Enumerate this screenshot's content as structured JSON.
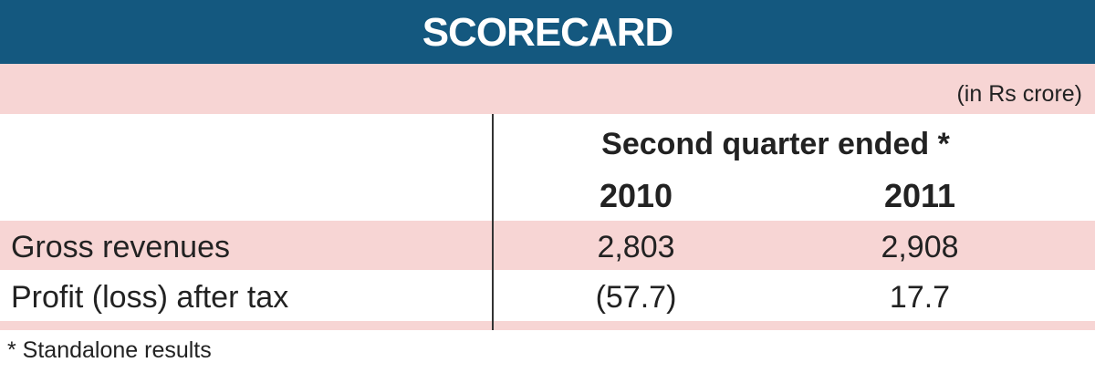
{
  "header": {
    "title": "SCORECARD"
  },
  "unit_note": "(in Rs crore)",
  "table": {
    "group_header": "Second quarter ended *",
    "columns": [
      "2010",
      "2011"
    ],
    "rows": [
      [
        "Gross revenues",
        "2,803",
        "2,908"
      ],
      [
        "Profit (loss) after tax",
        "(57.7)",
        "17.7"
      ]
    ]
  },
  "footnote": "* Standalone results"
}
